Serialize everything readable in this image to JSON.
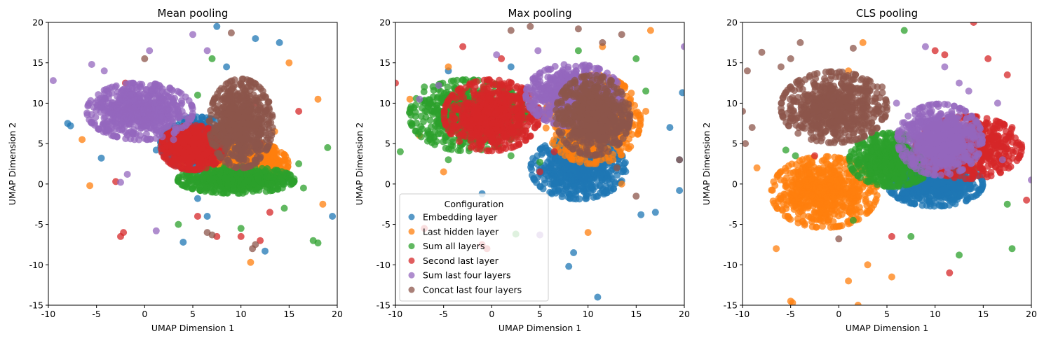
{
  "figure": {
    "colors": {
      "Embedding layer": "#1f77b4",
      "Last hidden layer": "#ff7f0e",
      "Sum all layers": "#2ca02c",
      "Second last layer": "#d62728",
      "Sum last four layers": "#9467bd",
      "Concat last four layers": "#8c564b"
    }
  },
  "chart_data": [
    {
      "type": "scatter",
      "title": "Mean pooling",
      "xlabel": "UMAP Dimension 1",
      "ylabel": "UMAP Dimension 2",
      "xlim": [
        -10,
        20
      ],
      "ylim": [
        -15,
        20
      ],
      "xticks": [
        -10,
        -5,
        0,
        5,
        10,
        15,
        20
      ],
      "yticks": [
        -15,
        -10,
        -5,
        0,
        5,
        10,
        15,
        20
      ],
      "grid": false,
      "legend": null,
      "series": [
        {
          "name": "Embedding layer",
          "cluster_center": [
            5.5,
            5.0
          ],
          "cluster_spread": [
            3.5,
            3.0
          ],
          "outliers": [
            [
              -8,
              7.5
            ],
            [
              -7.7,
              7.2
            ],
            [
              -4.5,
              3.2
            ],
            [
              1.2,
              4.2
            ],
            [
              3,
              2.4
            ],
            [
              4,
              -7.2
            ],
            [
              5.5,
              -1.8
            ],
            [
              6.5,
              -4
            ],
            [
              7.5,
              19.5
            ],
            [
              8.5,
              14.5
            ],
            [
              11.5,
              18
            ],
            [
              12.5,
              -8.3
            ],
            [
              14,
              17.5
            ],
            [
              14.5,
              0.3
            ],
            [
              19.5,
              -4
            ]
          ]
        },
        {
          "name": "Last hidden layer",
          "cluster_center": [
            10.5,
            2.5
          ],
          "cluster_spread": [
            4.0,
            2.5
          ],
          "outliers": [
            [
              -6.5,
              5.5
            ],
            [
              -5.7,
              -0.2
            ],
            [
              3.8,
              2.3
            ],
            [
              11,
              -9.7
            ],
            [
              15,
              15
            ],
            [
              18,
              10.5
            ],
            [
              18.5,
              -2.5
            ],
            [
              13.5,
              6.5
            ]
          ]
        },
        {
          "name": "Sum all layers",
          "cluster_center": [
            9.5,
            0.5
          ],
          "cluster_spread": [
            5.5,
            1.5
          ],
          "outliers": [
            [
              3.5,
              -5
            ],
            [
              5.5,
              11
            ],
            [
              7,
              15.5
            ],
            [
              10,
              -5.5
            ],
            [
              14.5,
              -3
            ],
            [
              16,
              2.5
            ],
            [
              17.5,
              -7
            ],
            [
              18,
              -7.3
            ],
            [
              19,
              4.5
            ],
            [
              16.5,
              -0.5
            ]
          ]
        },
        {
          "name": "Second last layer",
          "cluster_center": [
            5.0,
            4.5
          ],
          "cluster_spread": [
            3.0,
            2.5
          ],
          "outliers": [
            [
              -2.5,
              -6.5
            ],
            [
              -2.2,
              -6
            ],
            [
              -3,
              0.3
            ],
            [
              -2,
              12.5
            ],
            [
              3,
              6
            ],
            [
              5.5,
              -4
            ],
            [
              7.5,
              -6.5
            ],
            [
              10,
              -6.5
            ],
            [
              11.5,
              10
            ],
            [
              12,
              -7
            ],
            [
              12,
              5
            ],
            [
              13,
              -3.5
            ],
            [
              16,
              9
            ]
          ]
        },
        {
          "name": "Sum last four layers",
          "cluster_center": [
            -0.5,
            9.0
          ],
          "cluster_spread": [
            5.0,
            3.2
          ],
          "outliers": [
            [
              -9.5,
              12.8
            ],
            [
              -5.5,
              14.8
            ],
            [
              -4.2,
              14
            ],
            [
              -2.5,
              0.2
            ],
            [
              -1.8,
              1.2
            ],
            [
              0.5,
              16.5
            ],
            [
              1.2,
              -5.8
            ],
            [
              3,
              5.5
            ],
            [
              5,
              18.5
            ],
            [
              6.5,
              16.5
            ]
          ]
        },
        {
          "name": "Concat last four layers",
          "cluster_center": [
            10.0,
            7.5
          ],
          "cluster_spread": [
            3.0,
            5.0
          ],
          "outliers": [
            [
              0,
              15.5
            ],
            [
              6.5,
              -6
            ],
            [
              7,
              -6.3
            ],
            [
              9,
              18.7
            ],
            [
              11.5,
              -7.5
            ],
            [
              11.2,
              -8
            ]
          ]
        }
      ]
    },
    {
      "type": "scatter",
      "title": "Max pooling",
      "xlabel": "UMAP Dimension 1",
      "ylabel": "UMAP Dimension 2",
      "xlim": [
        -10,
        20
      ],
      "ylim": [
        -15,
        20
      ],
      "xticks": [
        -10,
        -5,
        0,
        5,
        10,
        15,
        20
      ],
      "yticks": [
        -15,
        -10,
        -5,
        0,
        5,
        10,
        15,
        20
      ],
      "grid": false,
      "legend": {
        "placement": "lower left",
        "title": "Configuration",
        "entries": [
          "Embedding layer",
          "Last hidden layer",
          "Sum all layers",
          "Second last layer",
          "Sum last four layers",
          "Concat last four layers"
        ]
      },
      "series": [
        {
          "name": "Embedding layer",
          "cluster_center": [
            9.0,
            2.0
          ],
          "cluster_spread": [
            4.5,
            3.5
          ],
          "outliers": [
            [
              -4.5,
              14
            ],
            [
              -1,
              -1.2
            ],
            [
              2,
              14.5
            ],
            [
              8.5,
              -8.5
            ],
            [
              8,
              -10.2
            ],
            [
              11,
              -14
            ],
            [
              15.5,
              -3.8
            ],
            [
              17,
              -3.5
            ],
            [
              18.5,
              7
            ],
            [
              19.5,
              3
            ],
            [
              19.8,
              11.3
            ],
            [
              19.5,
              -0.8
            ]
          ]
        },
        {
          "name": "Last hidden layer",
          "cluster_center": [
            10.5,
            8.0
          ],
          "cluster_spread": [
            4.5,
            5.0
          ],
          "outliers": [
            [
              -8.5,
              10.5
            ],
            [
              -7.5,
              6
            ],
            [
              -5,
              1.5
            ],
            [
              -4.5,
              14.5
            ],
            [
              10,
              -6
            ],
            [
              11.5,
              17
            ],
            [
              13.5,
              0
            ],
            [
              16.5,
              19
            ],
            [
              16,
              9
            ],
            [
              14,
              4.5
            ]
          ]
        },
        {
          "name": "Sum all layers",
          "cluster_center": [
            -2.5,
            8.5
          ],
          "cluster_spread": [
            5.5,
            4.0
          ],
          "outliers": [
            [
              -9.5,
              4
            ],
            [
              -7,
              12
            ],
            [
              -5.5,
              7.5
            ],
            [
              -4.5,
              3
            ],
            [
              -2.5,
              6.5
            ],
            [
              2,
              3.5
            ],
            [
              2.5,
              -6.2
            ],
            [
              5,
              2.7
            ],
            [
              9,
              16.5
            ],
            [
              15,
              15.5
            ],
            [
              16,
              11.5
            ]
          ]
        },
        {
          "name": "Second last layer",
          "cluster_center": [
            0.0,
            8.5
          ],
          "cluster_spread": [
            4.5,
            4.0
          ],
          "outliers": [
            [
              -10,
              12.5
            ],
            [
              -7,
              -5.5
            ],
            [
              -3,
              17
            ],
            [
              -1,
              -7.5
            ],
            [
              -0.5,
              -8
            ],
            [
              1,
              15.5
            ],
            [
              5,
              1.5
            ],
            [
              6.5,
              4
            ]
          ]
        },
        {
          "name": "Sum last four layers",
          "cluster_center": [
            8.5,
            11.0
          ],
          "cluster_spread": [
            4.5,
            3.5
          ],
          "outliers": [
            [
              -7.5,
              10.5
            ],
            [
              -5.5,
              12.2
            ],
            [
              0.5,
              16
            ],
            [
              4.8,
              16.5
            ],
            [
              5,
              -6.3
            ],
            [
              20,
              17
            ]
          ]
        },
        {
          "name": "Concat last four layers",
          "cluster_center": [
            10.5,
            8.5
          ],
          "cluster_spread": [
            3.5,
            4.5
          ],
          "outliers": [
            [
              2,
              19
            ],
            [
              4,
              19.5
            ],
            [
              9,
              19.2
            ],
            [
              11.5,
              17.5
            ],
            [
              13.5,
              18.5
            ],
            [
              13,
              2
            ],
            [
              15,
              -1.5
            ],
            [
              19.5,
              3
            ]
          ]
        }
      ]
    },
    {
      "type": "scatter",
      "title": "CLS pooling",
      "xlabel": "UMAP Dimension 1",
      "ylabel": "UMAP Dimension 2",
      "xlim": [
        -10,
        20
      ],
      "ylim": [
        -15,
        20
      ],
      "xticks": [
        -10,
        -5,
        0,
        5,
        10,
        15,
        20
      ],
      "yticks": [
        -15,
        -10,
        -5,
        0,
        5,
        10,
        15,
        20
      ],
      "grid": false,
      "legend": null,
      "series": [
        {
          "name": "Embedding layer",
          "cluster_center": [
            10.0,
            0.0
          ],
          "cluster_spread": [
            4.5,
            2.5
          ],
          "outliers": [
            [
              7,
              -1
            ],
            [
              14,
              1
            ]
          ]
        },
        {
          "name": "Last hidden layer",
          "cluster_center": [
            -1.5,
            -1.0
          ],
          "cluster_spread": [
            5.0,
            4.0
          ],
          "outliers": [
            [
              -8.5,
              2
            ],
            [
              -6.5,
              -8
            ],
            [
              -5,
              -14.5
            ],
            [
              -4.8,
              -14.7
            ],
            [
              1,
              -12
            ],
            [
              2,
              -15
            ],
            [
              3,
              -10
            ],
            [
              5.5,
              -11.5
            ],
            [
              2.5,
              17.5
            ],
            [
              1,
              14
            ],
            [
              9.5,
              5
            ]
          ]
        },
        {
          "name": "Sum all layers",
          "cluster_center": [
            5.5,
            3.0
          ],
          "cluster_spread": [
            4.0,
            3.0
          ],
          "outliers": [
            [
              -5.5,
              4.2
            ],
            [
              -4.5,
              3.5
            ],
            [
              1.5,
              -4.5
            ],
            [
              6.8,
              19
            ],
            [
              7.5,
              -6.5
            ],
            [
              12.5,
              -8.8
            ],
            [
              14,
              2
            ],
            [
              18,
              -8
            ],
            [
              17.5,
              -2.5
            ]
          ]
        },
        {
          "name": "Second last layer",
          "cluster_center": [
            13.5,
            4.5
          ],
          "cluster_spread": [
            5.0,
            3.5
          ],
          "outliers": [
            [
              -2.5,
              3.5
            ],
            [
              10,
              16.5
            ],
            [
              11,
              16
            ],
            [
              11.5,
              -11
            ],
            [
              15.5,
              15.5
            ],
            [
              17.5,
              13.5
            ],
            [
              18,
              7
            ],
            [
              19.5,
              -2
            ],
            [
              14,
              20
            ],
            [
              5.5,
              -6.5
            ]
          ]
        },
        {
          "name": "Sum last four layers",
          "cluster_center": [
            10.5,
            5.5
          ],
          "cluster_spread": [
            4.0,
            4.0
          ],
          "outliers": [
            [
              9,
              17
            ],
            [
              11,
              14.5
            ],
            [
              12.5,
              12.5
            ],
            [
              13.5,
              11.5
            ],
            [
              16.5,
              10
            ],
            [
              20,
              0.5
            ],
            [
              17,
              3
            ],
            [
              6,
              10
            ]
          ]
        },
        {
          "name": "Concat last four layers",
          "cluster_center": [
            -0.5,
            9.5
          ],
          "cluster_spread": [
            5.0,
            4.0
          ],
          "outliers": [
            [
              -10,
              9
            ],
            [
              -9.5,
              14
            ],
            [
              -8,
              16.3
            ],
            [
              -9,
              7
            ],
            [
              -9.7,
              5
            ],
            [
              -6,
              14.5
            ],
            [
              -5,
              15.5
            ],
            [
              -4,
              17.5
            ],
            [
              1.5,
              16.8
            ],
            [
              4.5,
              12
            ],
            [
              0,
              -6.8
            ]
          ]
        }
      ]
    }
  ]
}
